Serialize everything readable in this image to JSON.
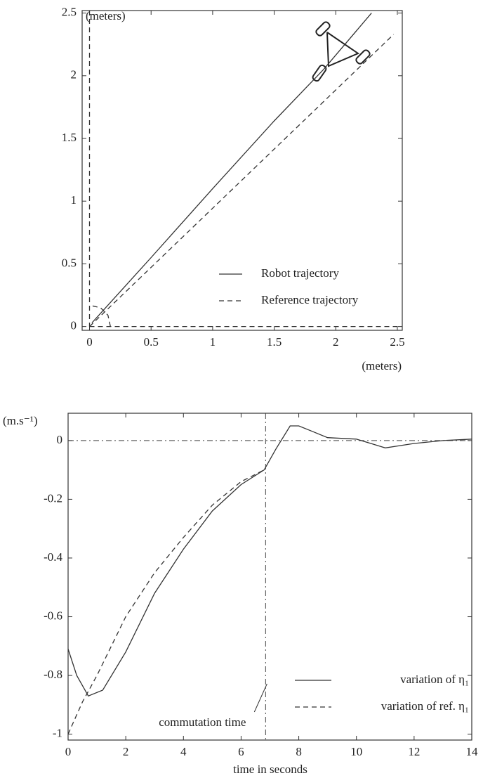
{
  "chart_data": [
    {
      "type": "line",
      "y_label": "(meters)",
      "x_label": "(meters)",
      "xlim": [
        -0.06,
        2.54
      ],
      "ylim": [
        -0.03,
        2.52
      ],
      "xticks": [
        0,
        0.5,
        1,
        1.5,
        2,
        2.5
      ],
      "yticks": [
        0,
        0.5,
        1,
        1.5,
        2,
        2.5
      ],
      "legend": "lower right",
      "series": [
        {
          "name": "Robot trajectory",
          "color": "#333333",
          "dash": "solid",
          "x": [
            0.02,
            0.5,
            1.0,
            1.5,
            1.9,
            2.29
          ],
          "values": [
            0.03,
            0.55,
            1.1,
            1.64,
            2.05,
            2.5
          ]
        },
        {
          "name": "Reference trajectory",
          "color": "#333333",
          "dash": "dashed",
          "x": [
            0,
            0,
            null,
            0,
            2.52,
            null,
            0,
            2.47,
            null,
            0.17,
            0.15,
            0.09,
            0
          ],
          "values": [
            2.52,
            0,
            null,
            0,
            0,
            null,
            0,
            2.33,
            null,
            0,
            0.09,
            0.15,
            0.17
          ]
        }
      ]
    },
    {
      "type": "line",
      "y_label": "(m.s⁻¹)",
      "x_label": "time in seconds",
      "xlim": [
        0,
        14
      ],
      "ylim": [
        -1.02,
        0.093
      ],
      "xticks": [
        0,
        2,
        4,
        6,
        8,
        10,
        12,
        14
      ],
      "yticks": [
        0,
        -0.2,
        -0.4,
        -0.6,
        -0.8,
        -1
      ],
      "legend": "lower right",
      "reference_line": 0,
      "commutation_time": 6.85,
      "annotation": "commutation time",
      "series": [
        {
          "name": "variation of η₁",
          "color": "#333333",
          "dash": "solid",
          "x": [
            0,
            0.3,
            0.7,
            1.2,
            2,
            3,
            4,
            5,
            6,
            6.8,
            7.2,
            7.7,
            8,
            8.5,
            9,
            10,
            10.5,
            11,
            12,
            13,
            14
          ],
          "values": [
            -0.71,
            -0.8,
            -0.87,
            -0.85,
            -0.72,
            -0.52,
            -0.37,
            -0.24,
            -0.15,
            -0.1,
            -0.03,
            0.05,
            0.05,
            0.03,
            0.01,
            0.005,
            -0.01,
            -0.025,
            -0.01,
            0,
            0.005
          ]
        },
        {
          "name": "variation of ref. η₁",
          "color": "#333333",
          "dash": "dashed",
          "x": [
            0,
            0.5,
            1,
            2,
            3,
            4,
            5,
            6,
            6.8
          ],
          "values": [
            -1,
            -0.89,
            -0.8,
            -0.6,
            -0.45,
            -0.33,
            -0.22,
            -0.14,
            -0.1
          ]
        }
      ]
    }
  ]
}
